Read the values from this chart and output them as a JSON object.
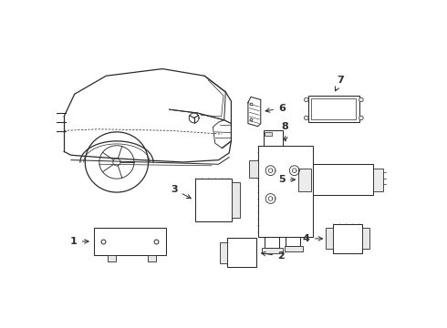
{
  "bg_color": "#ffffff",
  "line_color": "#2a2a2a",
  "figsize": [
    4.9,
    3.6
  ],
  "dpi": 100,
  "car": {
    "color": "#2a2a2a",
    "lw": 0.9
  },
  "components": {
    "lw": 0.75,
    "hatch_lw": 0.4
  },
  "labels": {
    "fontsize": 8,
    "fontweight": "bold"
  }
}
